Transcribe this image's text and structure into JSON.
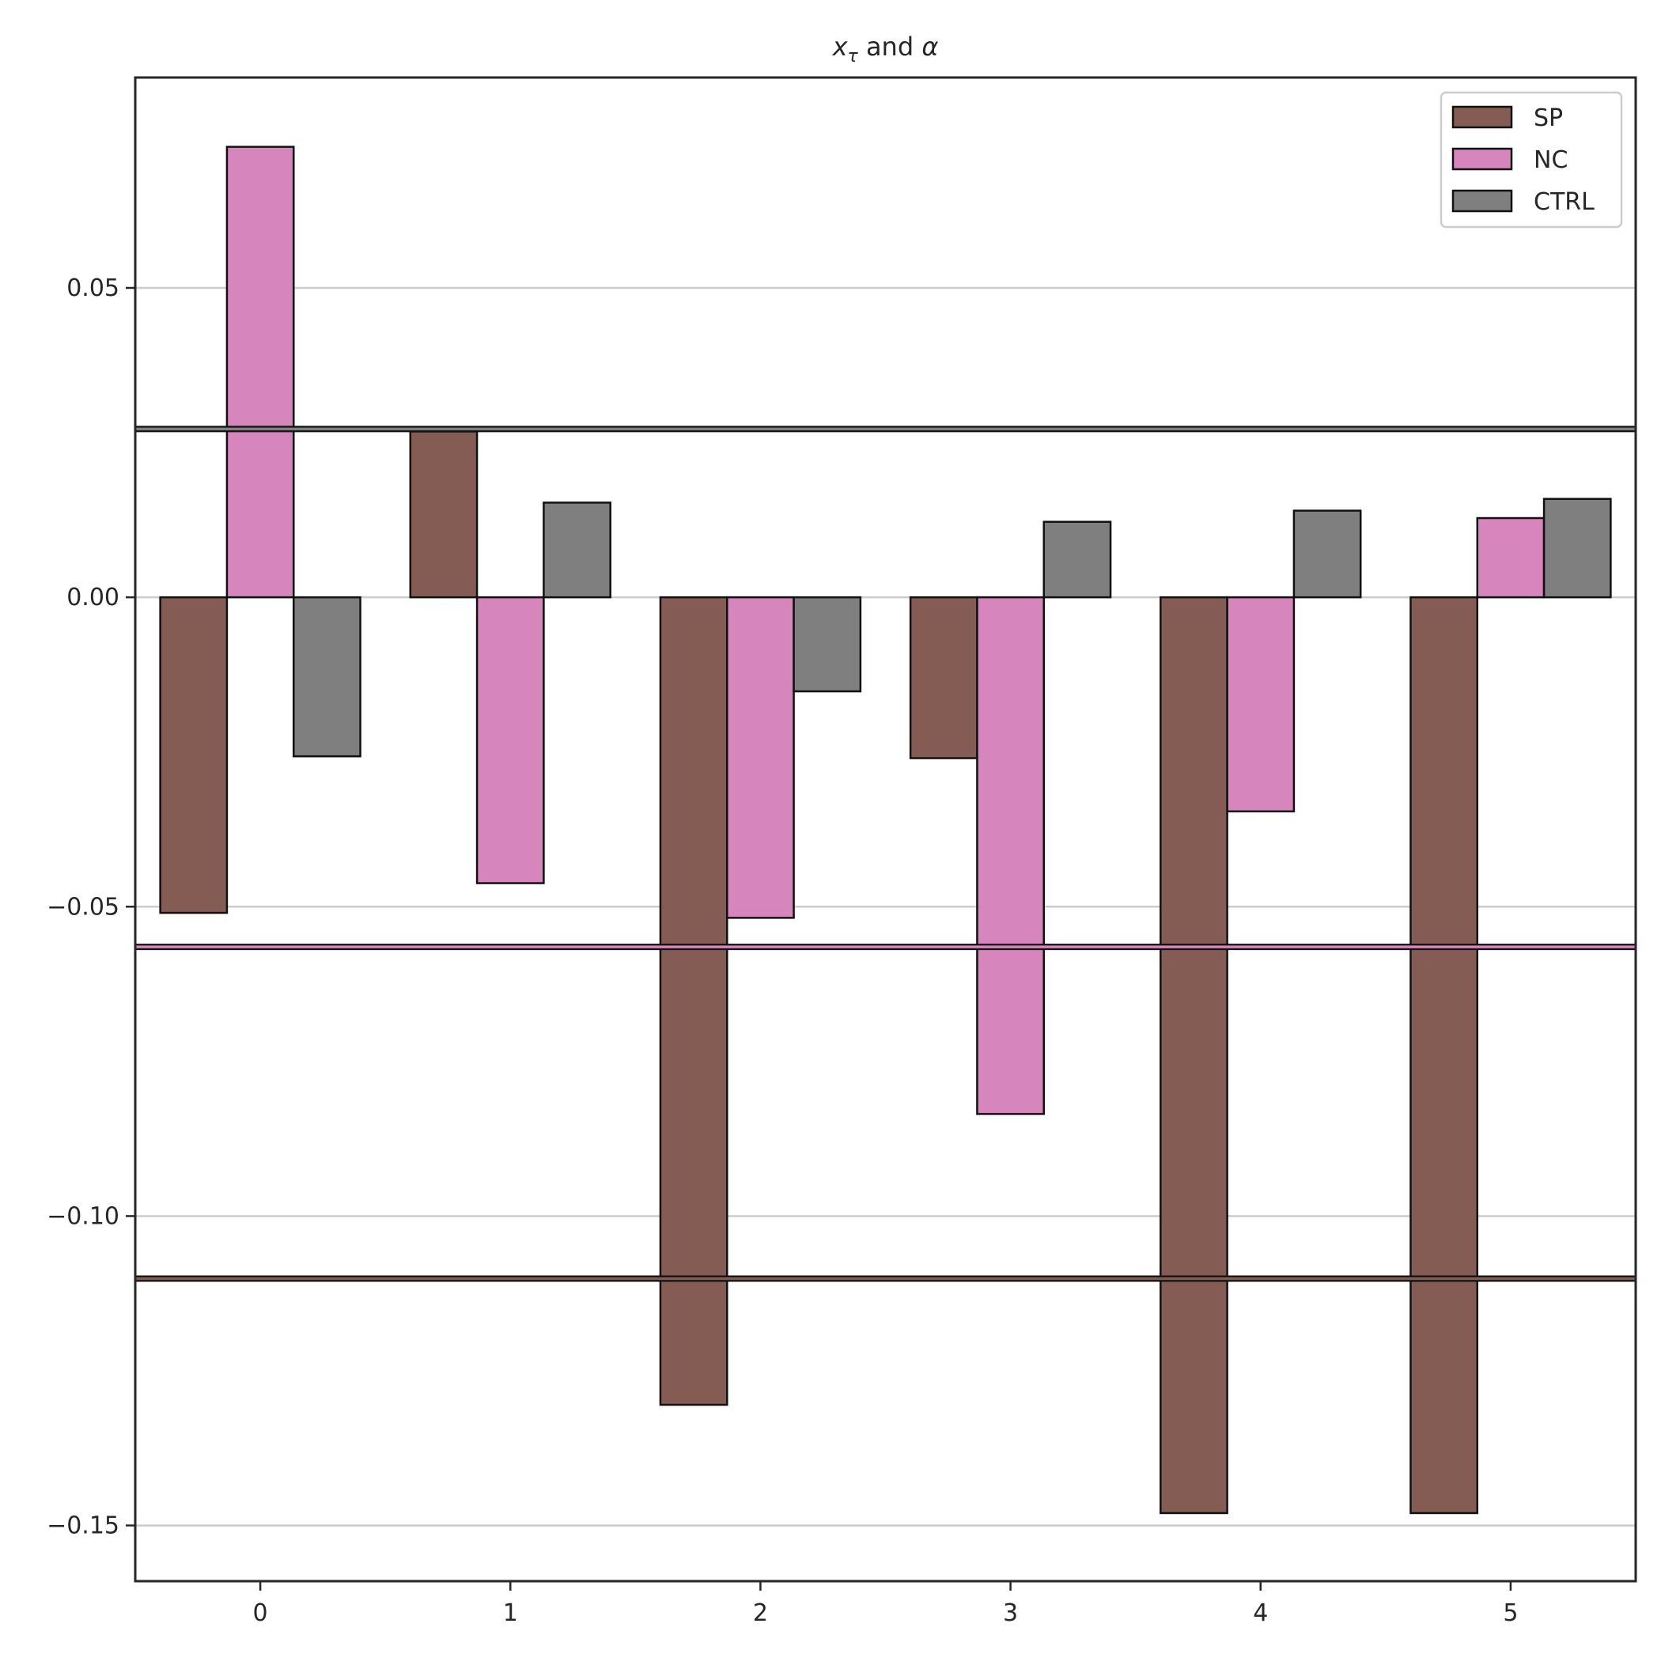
{
  "chart_data": {
    "type": "bar",
    "title_main": "x",
    "title_sub": "τ",
    "title_mid": " and ",
    "title_end": "α",
    "categories": [
      "0",
      "1",
      "2",
      "3",
      "4",
      "5"
    ],
    "series": [
      {
        "name": "SP",
        "color": "#845c54",
        "values": [
          -0.051,
          0.0268,
          -0.1305,
          -0.026,
          -0.148,
          -0.148
        ]
      },
      {
        "name": "NC",
        "color": "#d685bd",
        "values": [
          0.0728,
          -0.0462,
          -0.0518,
          -0.0835,
          -0.0346,
          0.0128
        ]
      },
      {
        "name": "CTRL",
        "color": "#7f7f7f",
        "values": [
          -0.0257,
          0.0153,
          -0.0152,
          0.0122,
          0.014,
          0.0159
        ]
      }
    ],
    "reference_lines": [
      {
        "series": "CTRL",
        "value": 0.0272,
        "color": "#7f7f7f"
      },
      {
        "series": "NC",
        "value": -0.0565,
        "color": "#d685bd"
      },
      {
        "series": "SP",
        "value": -0.1101,
        "color": "#845c54"
      }
    ],
    "yticks": [
      0.05,
      0.0,
      -0.05,
      -0.1,
      -0.15
    ],
    "ytick_labels": [
      "0.05",
      "0.00",
      "−0.05",
      "−0.10",
      "−0.15"
    ],
    "ylim": [
      -0.159,
      0.084
    ],
    "xlim": [
      -0.5,
      5.5
    ],
    "grid": "horizontal",
    "legend_position": "top-right"
  }
}
